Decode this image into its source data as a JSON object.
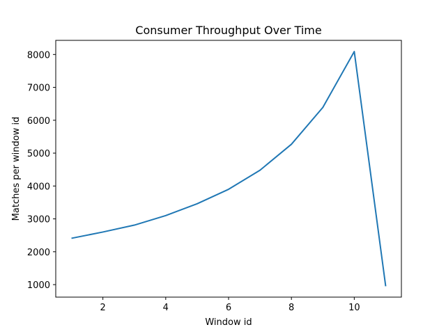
{
  "chart_data": {
    "type": "line",
    "title": "Consumer Throughput Over Time",
    "xlabel": "Window id",
    "ylabel": "Matches per window id",
    "xlim": [
      0.5,
      11.5
    ],
    "ylim": [
      620,
      8430
    ],
    "xticks": [
      2,
      4,
      6,
      8,
      10
    ],
    "yticks": [
      1000,
      2000,
      3000,
      4000,
      5000,
      6000,
      7000,
      8000
    ],
    "grid": false,
    "series": [
      {
        "color": "#1f77b4",
        "x": [
          1,
          2,
          3,
          4,
          5,
          6,
          7,
          8,
          9,
          10,
          11
        ],
        "y": [
          2410,
          2600,
          2810,
          3100,
          3460,
          3900,
          4480,
          5270,
          6390,
          8090,
          950
        ]
      }
    ]
  }
}
